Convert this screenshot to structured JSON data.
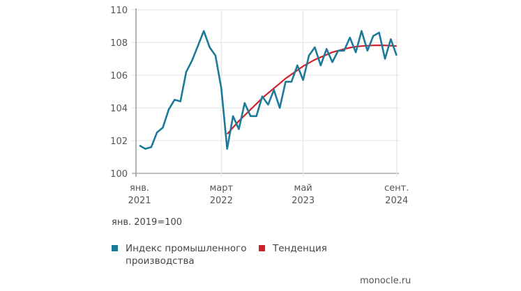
{
  "chart_data": {
    "type": "line",
    "title": "",
    "xlabel": "",
    "ylabel": "",
    "ylim": [
      100,
      110
    ],
    "yticks": [
      100,
      102,
      104,
      106,
      108,
      110
    ],
    "grid": true,
    "legend_position": "bottom",
    "note": "янв. 2019=100",
    "x_tick_labels": [
      {
        "index": 0,
        "line1": "янв.",
        "line2": "2021"
      },
      {
        "index": 14,
        "line1": "март",
        "line2": "2022"
      },
      {
        "index": 28,
        "line1": "май",
        "line2": "2023"
      },
      {
        "index": 44,
        "line1": "сент.",
        "line2": "2024"
      }
    ],
    "x": [
      "2021-01",
      "2021-02",
      "2021-03",
      "2021-04",
      "2021-05",
      "2021-06",
      "2021-07",
      "2021-08",
      "2021-09",
      "2021-10",
      "2021-11",
      "2021-12",
      "2022-01",
      "2022-02",
      "2022-03",
      "2022-04",
      "2022-05",
      "2022-06",
      "2022-07",
      "2022-08",
      "2022-09",
      "2022-10",
      "2022-11",
      "2022-12",
      "2023-01",
      "2023-02",
      "2023-03",
      "2023-04",
      "2023-05",
      "2023-06",
      "2023-07",
      "2023-08",
      "2023-09",
      "2023-10",
      "2023-11",
      "2023-12",
      "2024-01",
      "2024-02",
      "2024-03",
      "2024-04",
      "2024-05",
      "2024-06",
      "2024-07",
      "2024-08",
      "2024-09"
    ],
    "series": [
      {
        "name": "Индекс промышленного производства",
        "color": "#1b7a9a",
        "values": [
          101.7,
          101.5,
          101.6,
          102.5,
          102.8,
          103.9,
          104.5,
          104.4,
          106.2,
          106.9,
          107.8,
          108.7,
          107.7,
          107.2,
          105.2,
          101.5,
          103.5,
          102.7,
          104.3,
          103.5,
          103.5,
          104.7,
          104.2,
          105.1,
          104.0,
          105.6,
          105.6,
          106.6,
          105.7,
          107.2,
          107.7,
          106.6,
          107.6,
          106.8,
          107.5,
          107.5,
          108.3,
          107.4,
          108.7,
          107.5,
          108.4,
          108.6,
          107.0,
          108.2,
          107.2
        ]
      },
      {
        "name": "Тенденция",
        "color": "#d0202a",
        "start_index": 15,
        "values": [
          102.4,
          102.8,
          103.2,
          103.55,
          103.9,
          104.25,
          104.6,
          104.9,
          105.2,
          105.5,
          105.8,
          106.05,
          106.3,
          106.55,
          106.75,
          106.95,
          107.1,
          107.25,
          107.4,
          107.5,
          107.6,
          107.68,
          107.74,
          107.78,
          107.8,
          107.82,
          107.83,
          107.82,
          107.8,
          107.78
        ]
      }
    ]
  },
  "legend": {
    "items": [
      {
        "label_line1": "Индекс промышленного",
        "label_line2": "производства",
        "color": "#1b7a9a"
      },
      {
        "label_line1": "Тенденция",
        "label_line2": "",
        "color": "#d0202a"
      }
    ]
  },
  "source": "monocle.ru"
}
